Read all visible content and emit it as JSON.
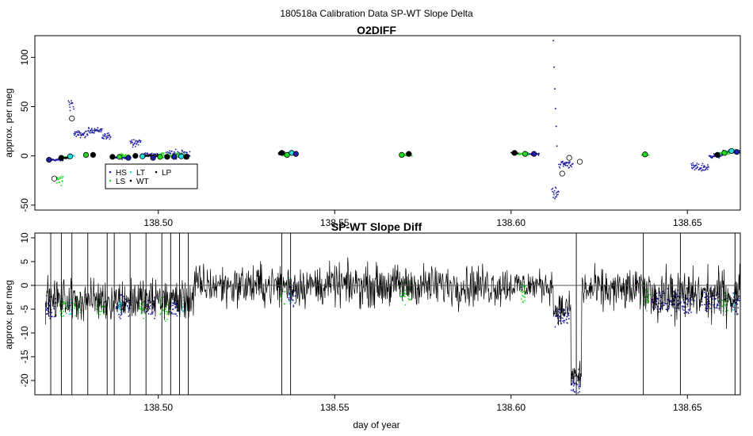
{
  "figure_title": "180518a   Calibration Data SP-WT Slope Delta",
  "colors": {
    "HS": "#1f1fa6",
    "LS": "#22dd22",
    "LT": "#22dddd",
    "WT": "#000000",
    "LP": "#000000",
    "zero_line": "#555555",
    "frame": "#000000"
  },
  "chart_data": [
    {
      "type": "scatter",
      "title": "O2DIFF",
      "xlabel": "",
      "ylabel": "approx. per meg",
      "xlim": [
        138.465,
        138.665
      ],
      "ylim": [
        -55,
        122
      ],
      "xticks": [
        138.5,
        138.55,
        138.6,
        138.65
      ],
      "xtick_labels": [
        "138.50",
        "138.55",
        "138.60",
        "138.65"
      ],
      "yticks": [
        -50,
        0,
        50,
        100
      ],
      "ytick_labels": [
        "-50",
        "0",
        "50",
        "100"
      ],
      "legend": {
        "position": "bottom-left",
        "entries": [
          {
            "key": "HS",
            "label": "HS"
          },
          {
            "key": "LT",
            "label": "LT"
          },
          {
            "key": "LP",
            "label": "LP"
          },
          {
            "key": "LS",
            "label": "LS"
          },
          {
            "key": "WT",
            "label": "WT"
          }
        ]
      },
      "series": [
        {
          "name": "HS",
          "type": "dense-dots",
          "segments": [
            {
              "x": [
                138.469,
                138.473
              ],
              "y": -4,
              "spread": 2
            },
            {
              "x": [
                138.4745,
                138.476
              ],
              "y": 52,
              "spread": 8
            },
            {
              "x": [
                138.476,
                138.48
              ],
              "y": 22,
              "spread": 5
            },
            {
              "x": [
                138.48,
                138.484
              ],
              "y": 26,
              "spread": 4
            },
            {
              "x": [
                138.484,
                138.4865
              ],
              "y": 20,
              "spread": 5
            },
            {
              "x": [
                138.487,
                138.492
              ],
              "y": -2,
              "spread": 2
            },
            {
              "x": [
                138.492,
                138.495
              ],
              "y": 14,
              "spread": 6
            },
            {
              "x": [
                138.495,
                138.5
              ],
              "y": 1,
              "spread": 3
            },
            {
              "x": [
                138.502,
                138.509
              ],
              "y": 2,
              "spread": 6
            },
            {
              "x": [
                138.534,
                138.539
              ],
              "y": 2,
              "spread": 2
            },
            {
              "x": [
                138.605,
                138.608
              ],
              "y": 2,
              "spread": 2
            },
            {
              "x": [
                138.6115,
                138.6135
              ],
              "y": -38,
              "spread": 8
            },
            {
              "x": [
                138.6135,
                138.6175
              ],
              "y": -8,
              "spread": 6
            },
            {
              "x": [
                138.651,
                138.656
              ],
              "y": -12,
              "spread": 6
            },
            {
              "x": [
                138.656,
                138.66
              ],
              "y": 0,
              "spread": 3
            },
            {
              "x": [
                138.66,
                138.665
              ],
              "y": 4,
              "spread": 2
            }
          ]
        },
        {
          "name": "LS",
          "type": "dense-dots",
          "segments": [
            {
              "x": [
                138.471,
                138.473
              ],
              "y": -25,
              "spread": 8
            },
            {
              "x": [
                138.473,
                138.4745
              ],
              "y": -2,
              "spread": 3
            },
            {
              "x": [
                138.489,
                138.492
              ],
              "y": 0,
              "spread": 3
            },
            {
              "x": [
                138.5,
                138.508
              ],
              "y": 0,
              "spread": 4
            },
            {
              "x": [
                138.535,
                138.537
              ],
              "y": 1,
              "spread": 2
            },
            {
              "x": [
                138.569,
                138.572
              ],
              "y": 1,
              "spread": 2
            },
            {
              "x": [
                138.602,
                138.605
              ],
              "y": 2,
              "spread": 2
            },
            {
              "x": [
                138.637,
                138.639
              ],
              "y": 1,
              "spread": 1
            },
            {
              "x": [
                138.659,
                138.662
              ],
              "y": 3,
              "spread": 2
            }
          ]
        },
        {
          "name": "LT",
          "type": "dense-dots",
          "segments": [
            {
              "x": [
                138.475,
                138.476
              ],
              "y": 0,
              "spread": 2
            },
            {
              "x": [
                138.506,
                138.507
              ],
              "y": 0,
              "spread": 2
            },
            {
              "x": [
                138.537,
                138.538
              ],
              "y": 3,
              "spread": 2
            },
            {
              "x": [
                138.662,
                138.6635
              ],
              "y": 5,
              "spread": 2
            }
          ]
        },
        {
          "name": "WT",
          "type": "dense-dots",
          "segments": [
            {
              "x": [
                138.472,
                138.475
              ],
              "y": -2,
              "spread": 2
            },
            {
              "x": [
                138.496,
                138.5
              ],
              "y": 0,
              "spread": 2
            },
            {
              "x": [
                138.534,
                138.536
              ],
              "y": 3,
              "spread": 2
            },
            {
              "x": [
                138.6,
                138.602
              ],
              "y": 3,
              "spread": 2
            }
          ]
        },
        {
          "name": "open-circle-means",
          "type": "points",
          "marker": "open-circle",
          "x": [
            138.4705,
            138.4755,
            138.6145,
            138.6165,
            138.6195
          ],
          "y": [
            -23,
            38,
            -18,
            -2,
            -6
          ]
        },
        {
          "name": "outlier-spike",
          "type": "points",
          "marker": "dot",
          "x": [
            138.612,
            138.6122,
            138.6124,
            138.6126,
            138.6128,
            138.613
          ],
          "y": [
            117,
            90,
            68,
            48,
            30,
            10
          ]
        },
        {
          "name": "group-means",
          "type": "points",
          "marker": "filled-circle",
          "points": [
            {
              "x": 138.469,
              "y": -4,
              "c": "HS"
            },
            {
              "x": 138.4725,
              "y": -2,
              "c": "WT"
            },
            {
              "x": 138.475,
              "y": -0.5,
              "c": "LT"
            },
            {
              "x": 138.4795,
              "y": 1,
              "c": "LS"
            },
            {
              "x": 138.4815,
              "y": 1,
              "c": "WT"
            },
            {
              "x": 138.487,
              "y": -1,
              "c": "WT"
            },
            {
              "x": 138.489,
              "y": -1,
              "c": "LS"
            },
            {
              "x": 138.4915,
              "y": -2,
              "c": "HS"
            },
            {
              "x": 138.4935,
              "y": 0,
              "c": "WT"
            },
            {
              "x": 138.4955,
              "y": -0.5,
              "c": "LT"
            },
            {
              "x": 138.4985,
              "y": -2,
              "c": "HS"
            },
            {
              "x": 138.5005,
              "y": -1,
              "c": "LS"
            },
            {
              "x": 138.5025,
              "y": -1,
              "c": "WT"
            },
            {
              "x": 138.5045,
              "y": -1,
              "c": "HS"
            },
            {
              "x": 138.5065,
              "y": -0.5,
              "c": "LT"
            },
            {
              "x": 138.508,
              "y": -1,
              "c": "WT"
            },
            {
              "x": 138.535,
              "y": 3,
              "c": "WT"
            },
            {
              "x": 138.5365,
              "y": 1,
              "c": "LS"
            },
            {
              "x": 138.5378,
              "y": 3,
              "c": "LT"
            },
            {
              "x": 138.539,
              "y": 2,
              "c": "HS"
            },
            {
              "x": 138.569,
              "y": 1,
              "c": "LS"
            },
            {
              "x": 138.571,
              "y": 2,
              "c": "WT"
            },
            {
              "x": 138.601,
              "y": 3,
              "c": "WT"
            },
            {
              "x": 138.604,
              "y": 2,
              "c": "LS"
            },
            {
              "x": 138.6065,
              "y": 2,
              "c": "HS"
            },
            {
              "x": 138.638,
              "y": 1.5,
              "c": "LS"
            },
            {
              "x": 138.6585,
              "y": 1,
              "c": "WT"
            },
            {
              "x": 138.6605,
              "y": 3,
              "c": "LS"
            },
            {
              "x": 138.6625,
              "y": 5,
              "c": "LT"
            },
            {
              "x": 138.664,
              "y": 4,
              "c": "HS"
            }
          ]
        }
      ]
    },
    {
      "type": "line",
      "title": "SP-WT Slope Diff",
      "xlabel": "day of year",
      "ylabel": "approx. per meg",
      "xlim": [
        138.465,
        138.665
      ],
      "ylim": [
        -23,
        11
      ],
      "xticks": [
        138.5,
        138.55,
        138.6,
        138.65
      ],
      "xtick_labels": [
        "138.50",
        "138.55",
        "138.60",
        "138.65"
      ],
      "yticks": [
        -20,
        -15,
        -10,
        -5,
        0,
        5,
        10
      ],
      "ytick_labels": [
        "-20",
        "-15",
        "-10",
        "-5",
        "0",
        "5",
        "10"
      ],
      "reference_line_y": 0,
      "noise_line": {
        "x_start": 138.468,
        "x_end": 138.665,
        "points": 1500,
        "baseline_segments": [
          {
            "x": [
              138.468,
              138.51
            ],
            "level": -3,
            "amp": 4
          },
          {
            "x": [
              138.51,
              138.6
            ],
            "level": 0,
            "amp": 4
          },
          {
            "x": [
              138.6,
              138.612
            ],
            "level": 0,
            "amp": 3
          },
          {
            "x": [
              138.612,
              138.617
            ],
            "level": -5,
            "amp": 3
          },
          {
            "x": [
              138.617,
              138.62
            ],
            "level": -19,
            "amp": 3
          },
          {
            "x": [
              138.62,
              138.64
            ],
            "level": -1,
            "amp": 4
          },
          {
            "x": [
              138.64,
              138.665
            ],
            "level": -2,
            "amp": 5
          }
        ]
      },
      "vertical_spikes_x": [
        138.4695,
        138.4725,
        138.4755,
        138.48,
        138.4855,
        138.4875,
        138.492,
        138.4965,
        138.501,
        138.5035,
        138.506,
        138.5085,
        138.535,
        138.5375,
        138.6185,
        138.6375,
        138.648,
        138.6635
      ],
      "colored_segments": [
        {
          "name": "HS",
          "x": [
            [
              138.468,
              138.471
            ],
            [
              138.488,
              138.492
            ],
            [
              138.496,
              138.499
            ],
            [
              138.503,
              138.506
            ],
            [
              138.537,
              138.539
            ],
            [
              138.6125,
              138.6165
            ],
            [
              138.617,
              138.6195
            ],
            [
              138.64,
              138.652
            ],
            [
              138.654,
              138.659
            ],
            [
              138.663,
              138.665
            ]
          ]
        },
        {
          "name": "LS",
          "x": [
            [
              138.472,
              138.474
            ],
            [
              138.476,
              138.4785
            ],
            [
              138.4825,
              138.485
            ],
            [
              138.4945,
              138.4965
            ],
            [
              138.5005,
              138.5035
            ],
            [
              138.5345,
              138.536
            ],
            [
              138.5685,
              138.5715
            ],
            [
              138.6025,
              138.6045
            ],
            [
              138.6375,
              138.6395
            ],
            [
              138.6595,
              138.6615
            ]
          ]
        },
        {
          "name": "LT",
          "x": [
            [
              138.4745,
              138.4755
            ],
            [
              138.4885,
              138.4895
            ],
            [
              138.5065,
              138.5075
            ],
            [
              138.537,
              138.5378
            ],
            [
              138.6625,
              138.6635
            ]
          ]
        }
      ]
    }
  ]
}
